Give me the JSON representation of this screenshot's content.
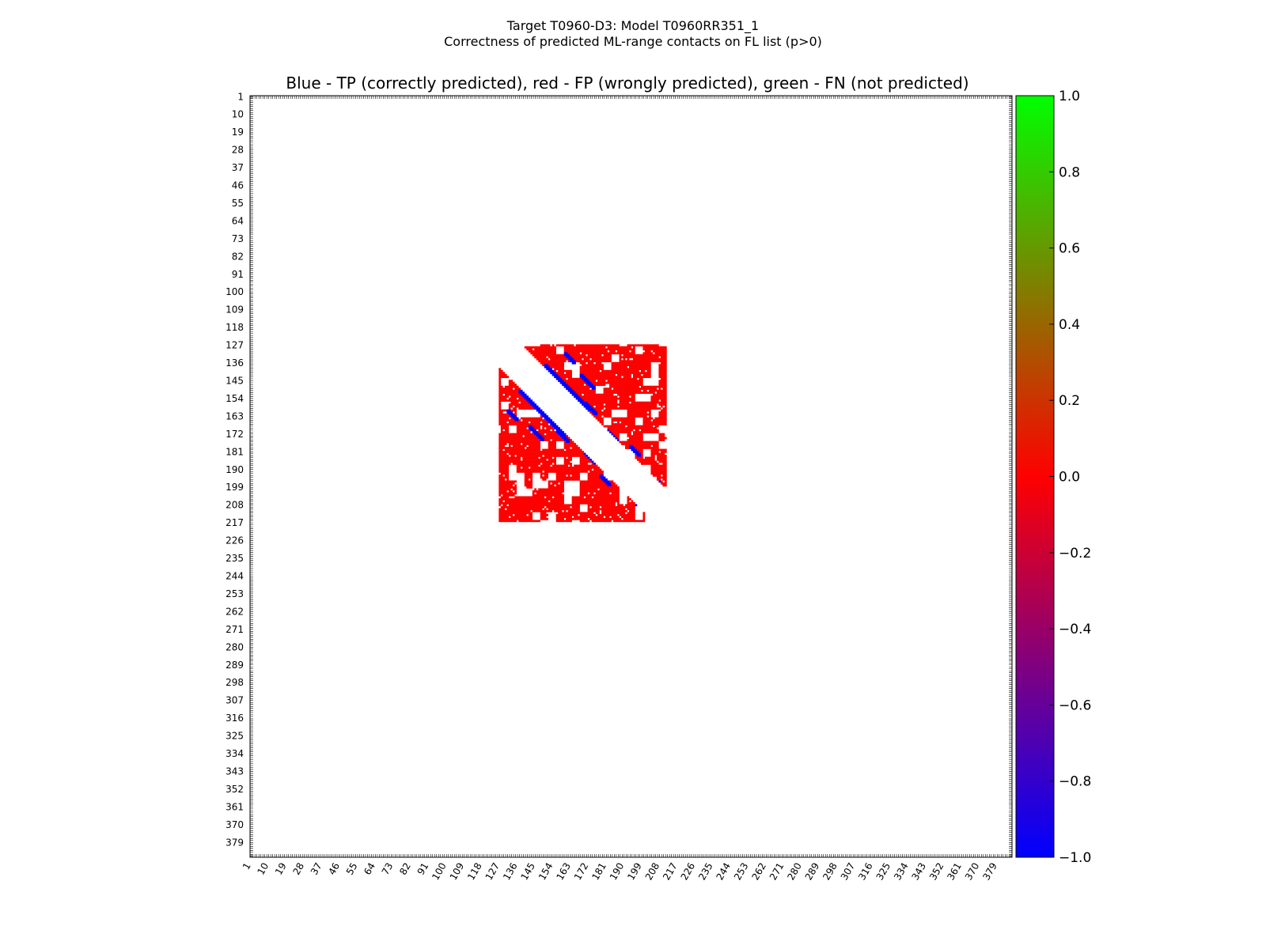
{
  "figure": {
    "title_line1": "Target T0960-D3: Model T0960RR351_1",
    "title_line2": "Correctness of predicted ML-range contacts on FL list (p>0)"
  },
  "chart_data": {
    "type": "heatmap",
    "title": "Blue - TP (correctly predicted), red - FP (wrongly predicted), green - FN (not predicted)",
    "xlabel": "",
    "ylabel": "",
    "residue_range": [
      1,
      386
    ],
    "tick_labels": [
      "1",
      "10",
      "19",
      "28",
      "37",
      "46",
      "55",
      "64",
      "73",
      "82",
      "91",
      "100",
      "109",
      "118",
      "127",
      "136",
      "145",
      "154",
      "163",
      "172",
      "181",
      "190",
      "199",
      "208",
      "217",
      "226",
      "235",
      "244",
      "253",
      "262",
      "271",
      "280",
      "289",
      "298",
      "307",
      "316",
      "325",
      "334",
      "343",
      "352",
      "361",
      "370",
      "379"
    ],
    "region": {
      "residues": [
        127,
        216
      ],
      "excluded_band_half_width": 11,
      "upper_triangle_end": 211,
      "lower_triangle_end": 200
    },
    "colors": {
      "TP": "#0000ff",
      "FP": "#ff0000",
      "FN": "#00ff00",
      "empty": "#ffffff"
    },
    "tp_segments": [
      {
        "i": [
          137,
          152
        ],
        "j": [
          150,
          165
        ],
        "value": -1.0
      },
      {
        "i": [
          149,
          160
        ],
        "j": [
          162,
          173
        ],
        "value": -1.0
      },
      {
        "i": [
          131,
          136
        ],
        "j": [
          160,
          165
        ],
        "value": -1.0
      },
      {
        "i": [
          142,
          149
        ],
        "j": [
          168,
          175
        ],
        "value": -1.0
      },
      {
        "i": [
          170,
          176
        ],
        "j": [
          181,
          187
        ],
        "value": -1.0
      },
      {
        "i": [
          178,
          183
        ],
        "j": [
          193,
          198
        ],
        "value": -1.0
      },
      {
        "i": [
          196,
          200
        ],
        "j": [
          207,
          209
        ],
        "value": -1.0
      },
      {
        "i": [
          156,
          162
        ],
        "j": [
          170,
          176
        ],
        "value": -1.0
      }
    ],
    "colorbar": {
      "min": -1.0,
      "max": 1.0,
      "ticks": [
        "1.0",
        "0.8",
        "0.6",
        "0.4",
        "0.2",
        "0.0",
        "−0.2",
        "−0.4",
        "−0.6",
        "−0.8",
        "−1.0"
      ],
      "gradient_stops": [
        "#00ff00",
        "#ff0000",
        "#0000ff"
      ]
    }
  }
}
